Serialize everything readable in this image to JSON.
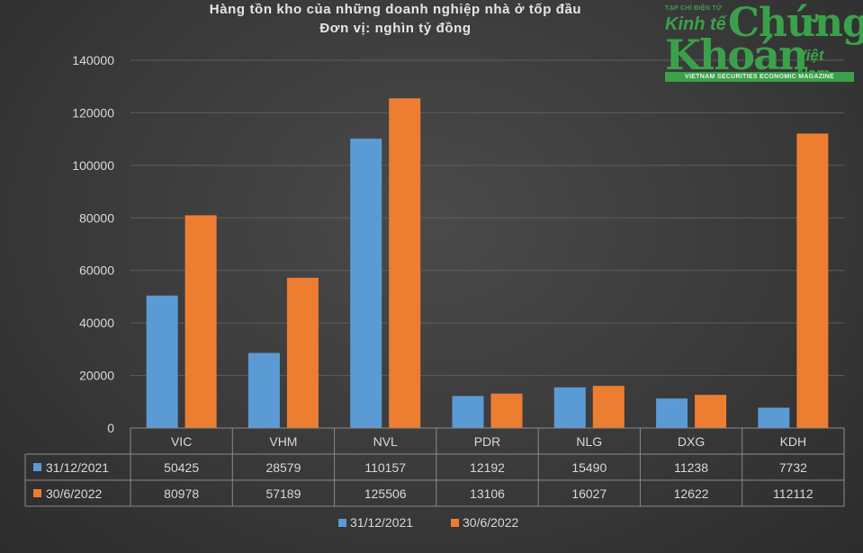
{
  "chart_data": {
    "type": "bar",
    "title": "Hàng tồn kho của những doanh nghiệp nhà ở tốp đầu",
    "subtitle": "Đơn vị: nghìn tỷ đồng",
    "categories": [
      "VIC",
      "VHM",
      "NVL",
      "PDR",
      "NLG",
      "DXG",
      "KDH"
    ],
    "series": [
      {
        "name": "31/12/2021",
        "values": [
          50425,
          28579,
          110157,
          12192,
          15490,
          11238,
          7732
        ]
      },
      {
        "name": "30/6/2022",
        "values": [
          80978,
          57189,
          125506,
          13106,
          16027,
          12622,
          112112
        ]
      }
    ],
    "ylim": [
      0,
      140000
    ],
    "yticks": [
      0,
      20000,
      40000,
      60000,
      80000,
      100000,
      120000,
      140000
    ],
    "grid": true,
    "legend": "bottom",
    "data_table": true,
    "colors": [
      "#5b9bd5",
      "#ed7d31"
    ]
  },
  "logo": {
    "small": "TẠP CHÍ ĐIỆN TỬ",
    "kinhte": "Kinh tế",
    "chung": "Chứng",
    "khoan": "Khoán",
    "vietnam": "Việt Nam",
    "magazine": "VIETNAM SECURITIES ECONOMIC MAGAZINE"
  }
}
